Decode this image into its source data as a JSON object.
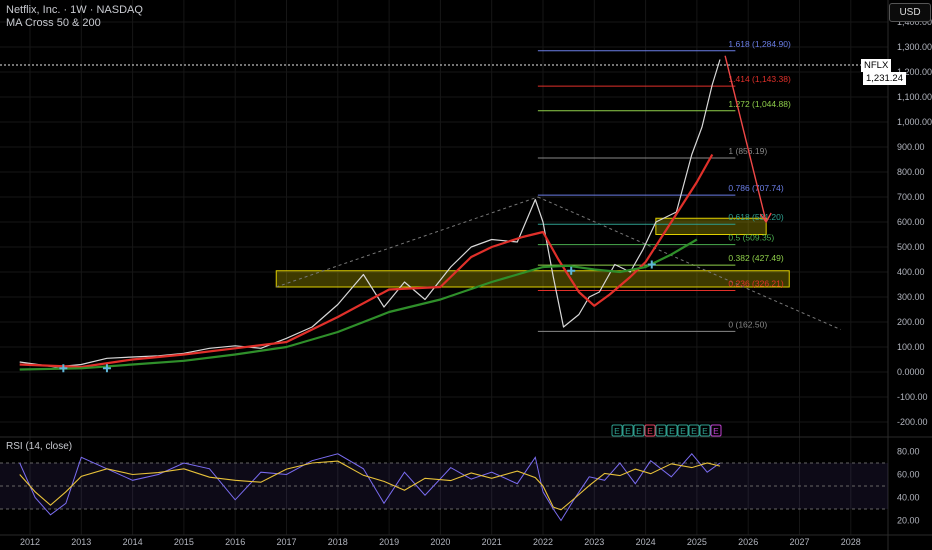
{
  "header": {
    "symbol_line": "Netflix, Inc. · 1W · NASDAQ",
    "indicator_line": "MA Cross 50 & 200",
    "rsi_label": "RSI (14, close)",
    "currency": "USD"
  },
  "last_price": {
    "symbol": "NFLX",
    "value": "1,231.24"
  },
  "colors": {
    "background": "#000000",
    "price": "#d8d8d8",
    "ma50": "#e0302a",
    "ma200": "#2f8f2a",
    "rsi": "#7a6cf0",
    "rsi_ma": "#e8c23a",
    "zone": "#e0d000",
    "arrow": "#f04848"
  },
  "chart_data": {
    "type": "line",
    "x_axis": {
      "ticks": [
        "2012",
        "2013",
        "2014",
        "2015",
        "2016",
        "2017",
        "2018",
        "2019",
        "2020",
        "2021",
        "2022",
        "2023",
        "2024",
        "2025",
        "2026",
        "2027",
        "2028"
      ]
    },
    "y_axis": {
      "range": [
        -250,
        1450
      ],
      "scale": "linear",
      "ticks": [
        "1,400.00",
        "1,300.00",
        "1,200.00",
        "1,100.00",
        "1,000.00",
        "900.00",
        "800.00",
        "700.00",
        "600.00",
        "500.00",
        "400.00",
        "300.00",
        "200.00",
        "100.00",
        "0.0000",
        "-100.00",
        "-200.00"
      ]
    },
    "series": [
      {
        "role": "price",
        "points": [
          [
            2011.8,
            40
          ],
          [
            2012.5,
            20
          ],
          [
            2013,
            30
          ],
          [
            2013.5,
            55
          ],
          [
            2014,
            60
          ],
          [
            2014.5,
            65
          ],
          [
            2015,
            75
          ],
          [
            2015.5,
            95
          ],
          [
            2016,
            105
          ],
          [
            2016.5,
            95
          ],
          [
            2017,
            135
          ],
          [
            2017.5,
            180
          ],
          [
            2018,
            270
          ],
          [
            2018.5,
            390
          ],
          [
            2018.9,
            260
          ],
          [
            2019.3,
            360
          ],
          [
            2019.7,
            290
          ],
          [
            2020.2,
            420
          ],
          [
            2020.6,
            500
          ],
          [
            2021,
            530
          ],
          [
            2021.5,
            520
          ],
          [
            2021.85,
            690
          ],
          [
            2022.0,
            600
          ],
          [
            2022.2,
            380
          ],
          [
            2022.4,
            180
          ],
          [
            2022.7,
            230
          ],
          [
            2022.9,
            300
          ],
          [
            2023.1,
            320
          ],
          [
            2023.4,
            430
          ],
          [
            2023.7,
            400
          ],
          [
            2023.95,
            490
          ],
          [
            2024.2,
            600
          ],
          [
            2024.6,
            640
          ],
          [
            2024.9,
            870
          ],
          [
            2025.1,
            980
          ],
          [
            2025.3,
            1150
          ],
          [
            2025.45,
            1250
          ]
        ]
      },
      {
        "role": "ma50",
        "points": [
          [
            2011.8,
            30
          ],
          [
            2013,
            20
          ],
          [
            2014,
            50
          ],
          [
            2015,
            70
          ],
          [
            2016,
            95
          ],
          [
            2017,
            120
          ],
          [
            2018,
            220
          ],
          [
            2019,
            330
          ],
          [
            2020,
            340
          ],
          [
            2020.6,
            460
          ],
          [
            2021,
            500
          ],
          [
            2021.6,
            540
          ],
          [
            2022.0,
            560
          ],
          [
            2022.3,
            450
          ],
          [
            2022.7,
            320
          ],
          [
            2023.0,
            265
          ],
          [
            2023.3,
            310
          ],
          [
            2023.7,
            380
          ],
          [
            2024.0,
            440
          ],
          [
            2024.5,
            600
          ],
          [
            2025.0,
            760
          ],
          [
            2025.3,
            870
          ]
        ]
      },
      {
        "role": "ma200",
        "points": [
          [
            2011.8,
            10
          ],
          [
            2013,
            15
          ],
          [
            2014,
            30
          ],
          [
            2015,
            45
          ],
          [
            2016,
            70
          ],
          [
            2017,
            100
          ],
          [
            2018,
            160
          ],
          [
            2019,
            240
          ],
          [
            2020,
            290
          ],
          [
            2021,
            360
          ],
          [
            2022,
            420
          ],
          [
            2022.5,
            425
          ],
          [
            2023,
            410
          ],
          [
            2023.5,
            400
          ],
          [
            2024,
            420
          ],
          [
            2024.5,
            470
          ],
          [
            2025,
            530
          ]
        ]
      },
      {
        "role": "rsi",
        "points": [
          [
            2011.8,
            70
          ],
          [
            2012.1,
            40
          ],
          [
            2012.4,
            25
          ],
          [
            2012.7,
            35
          ],
          [
            2013.0,
            75
          ],
          [
            2013.5,
            65
          ],
          [
            2014.0,
            55
          ],
          [
            2014.5,
            60
          ],
          [
            2015.0,
            70
          ],
          [
            2015.5,
            65
          ],
          [
            2016.0,
            38
          ],
          [
            2016.5,
            62
          ],
          [
            2017.0,
            60
          ],
          [
            2017.5,
            72
          ],
          [
            2018.0,
            78
          ],
          [
            2018.5,
            65
          ],
          [
            2018.9,
            35
          ],
          [
            2019.3,
            62
          ],
          [
            2019.7,
            42
          ],
          [
            2020.2,
            66
          ],
          [
            2020.6,
            56
          ],
          [
            2021.0,
            62
          ],
          [
            2021.5,
            52
          ],
          [
            2021.85,
            75
          ],
          [
            2022.0,
            45
          ],
          [
            2022.2,
            30
          ],
          [
            2022.35,
            20
          ],
          [
            2022.6,
            38
          ],
          [
            2022.9,
            58
          ],
          [
            2023.2,
            55
          ],
          [
            2023.5,
            70
          ],
          [
            2023.8,
            52
          ],
          [
            2024.1,
            72
          ],
          [
            2024.5,
            58
          ],
          [
            2024.9,
            78
          ],
          [
            2025.2,
            62
          ],
          [
            2025.45,
            70
          ]
        ]
      }
    ],
    "rsi_axis": {
      "range": [
        10,
        90
      ],
      "ticks": [
        "80.00",
        "60.00",
        "40.00",
        "20.00"
      ],
      "band": [
        30,
        70
      ]
    },
    "fib_levels": [
      {
        "ratio": "1.618",
        "value": "1,284.90",
        "y": 1284.9,
        "color": "#6b7ee6"
      },
      {
        "ratio": "1.414",
        "value": "1,143.38",
        "y": 1143.38,
        "color": "#e0302a"
      },
      {
        "ratio": "1.272",
        "value": "1,044.88",
        "y": 1044.88,
        "color": "#8fcf4a"
      },
      {
        "ratio": "1",
        "value": "856.19",
        "y": 856.19,
        "color": "#888888"
      },
      {
        "ratio": "0.786",
        "value": "707.74",
        "y": 707.74,
        "color": "#6b7ee6"
      },
      {
        "ratio": "0.618",
        "value": "591.20",
        "y": 591.2,
        "color": "#2fa090"
      },
      {
        "ratio": "0.5",
        "value": "509.35",
        "y": 509.35,
        "color": "#4caf50"
      },
      {
        "ratio": "0.382",
        "value": "427.49",
        "y": 427.49,
        "color": "#8fcf4a"
      },
      {
        "ratio": "0.236",
        "value": "326.21",
        "y": 326.21,
        "color": "#e0302a"
      },
      {
        "ratio": "0",
        "value": "162.50",
        "y": 162.5,
        "color": "#888888"
      }
    ],
    "zones": [
      {
        "x0": 2016.8,
        "x1": 2026.8,
        "y0": 340,
        "y1": 405
      },
      {
        "x0": 2024.2,
        "x1": 2026.35,
        "y0": 550,
        "y1": 615
      }
    ],
    "cross_markers": [
      {
        "x": 2012.65,
        "y": 15
      },
      {
        "x": 2013.5,
        "y": 15
      },
      {
        "x": 2022.55,
        "y": 405
      },
      {
        "x": 2024.12,
        "y": 430
      }
    ],
    "trend_lines": [
      {
        "points": [
          [
            2016.8,
            340
          ],
          [
            2021.9,
            700
          ]
        ]
      },
      {
        "points": [
          [
            2021.9,
            700
          ],
          [
            2027.8,
            170
          ]
        ]
      }
    ],
    "arrow": {
      "from": [
        2025.55,
        1265
      ],
      "to": [
        2026.35,
        600
      ]
    },
    "event_badges": [
      "E",
      "E",
      "E",
      "E",
      "E",
      "E",
      "E",
      "E",
      "E",
      "E"
    ]
  }
}
